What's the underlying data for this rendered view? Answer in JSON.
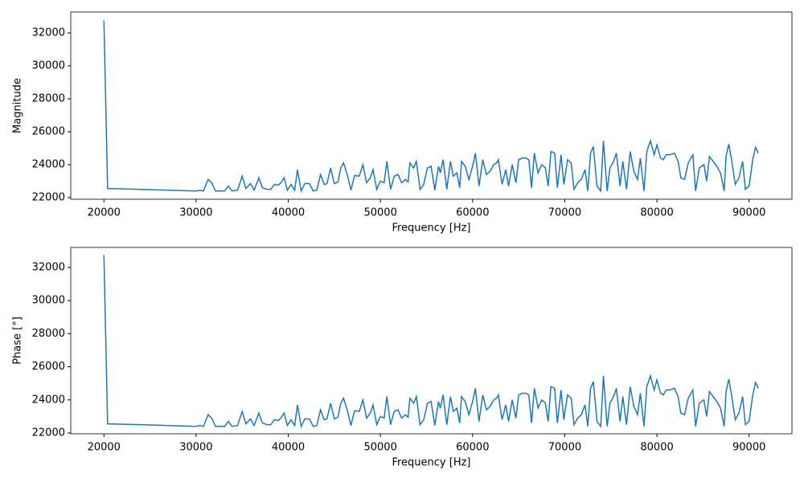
{
  "chart_data": [
    {
      "type": "line",
      "xlabel": "Frequency [Hz]",
      "ylabel": "Magnitude",
      "color": "#1f77b4",
      "xlim": [
        16400,
        94650
      ],
      "ylim": [
        21900,
        33270
      ],
      "xticks": [
        20000,
        30000,
        40000,
        50000,
        60000,
        70000,
        80000,
        90000
      ],
      "yticks": [
        22000,
        24000,
        26000,
        28000,
        30000,
        32000
      ],
      "x": [
        20000,
        20400,
        24000,
        30000,
        30400,
        30800,
        31300,
        31700,
        32100,
        32600,
        33100,
        33500,
        33900,
        34500,
        35000,
        35400,
        35900,
        36300,
        36800,
        37200,
        37700,
        38100,
        38500,
        38900,
        39200,
        39550,
        39900,
        40300,
        40700,
        41000,
        41400,
        41800,
        42300,
        42700,
        43100,
        43500,
        43900,
        44200,
        44600,
        45000,
        45400,
        45700,
        46000,
        46400,
        46800,
        47200,
        47700,
        48100,
        48500,
        48900,
        49200,
        49600,
        50000,
        50400,
        50700,
        51100,
        51500,
        51900,
        52300,
        52700,
        53000,
        53200,
        53600,
        53900,
        54300,
        54700,
        55100,
        55500,
        55900,
        56300,
        56500,
        56800,
        57200,
        57600,
        57900,
        58300,
        58600,
        58800,
        59200,
        59600,
        60000,
        60300,
        60700,
        61100,
        61500,
        61900,
        62300,
        62600,
        62800,
        63200,
        63600,
        63900,
        64300,
        64700,
        65000,
        65400,
        65800,
        66100,
        66400,
        66700,
        67100,
        67500,
        67900,
        68200,
        68500,
        68900,
        69200,
        69600,
        69900,
        70300,
        70700,
        71000,
        71400,
        71800,
        72200,
        72500,
        72800,
        73100,
        73500,
        73900,
        74200,
        74600,
        74900,
        75300,
        75600,
        76000,
        76300,
        76700,
        77100,
        77500,
        77900,
        78200,
        78600,
        78900,
        79300,
        79700,
        80000,
        80400,
        80700,
        81000,
        81400,
        81900,
        82300,
        82600,
        83000,
        83400,
        83900,
        84200,
        84600,
        85100,
        85400,
        85700,
        86100,
        86500,
        86900,
        87300,
        87500,
        87800,
        88100,
        88500,
        88900,
        89300,
        89600,
        90000,
        90400,
        90700,
        91000
      ],
      "values": [
        32750,
        22550,
        22500,
        22400,
        22450,
        22400,
        23100,
        22900,
        22400,
        22400,
        22400,
        22700,
        22400,
        22450,
        23300,
        22550,
        22850,
        22450,
        23200,
        22600,
        22500,
        22500,
        22800,
        22750,
        22900,
        23200,
        22450,
        22800,
        22450,
        23700,
        22400,
        22850,
        22850,
        22400,
        22450,
        23400,
        22800,
        22850,
        23800,
        22850,
        22950,
        23800,
        24100,
        23400,
        22450,
        23350,
        23300,
        24000,
        22900,
        23200,
        23700,
        22500,
        23000,
        22900,
        24200,
        22500,
        23300,
        23400,
        22900,
        23100,
        22950,
        24100,
        23800,
        24200,
        22500,
        22800,
        23800,
        23900,
        22450,
        23900,
        23500,
        24300,
        22500,
        24200,
        23300,
        23500,
        22600,
        24200,
        23900,
        23100,
        23900,
        24700,
        22700,
        24300,
        23400,
        23600,
        24000,
        24100,
        24300,
        22800,
        23700,
        22700,
        24000,
        22900,
        24300,
        24400,
        24400,
        24300,
        22600,
        24700,
        23500,
        24000,
        23800,
        22700,
        24800,
        24700,
        22600,
        24600,
        22800,
        24300,
        24100,
        22500,
        22900,
        23100,
        23700,
        22400,
        24700,
        25100,
        22700,
        22400,
        25450,
        22400,
        23800,
        24200,
        24700,
        22700,
        24200,
        22500,
        24800,
        23600,
        23100,
        24400,
        22400,
        24800,
        25450,
        24600,
        25200,
        24400,
        24300,
        24600,
        24600,
        24700,
        24200,
        23200,
        23100,
        24100,
        24600,
        22400,
        23800,
        24000,
        23000,
        24500,
        24200,
        23900,
        23500,
        22400,
        24500,
        25250,
        24300,
        22800,
        23200,
        24200,
        22500,
        22700,
        24300,
        25050,
        24700
      ]
    },
    {
      "type": "line",
      "xlabel": "Frequency [Hz]",
      "ylabel": "Phase [°]",
      "color": "#1f77b4",
      "xlim": [
        16400,
        94650
      ],
      "ylim": [
        21950,
        33210
      ],
      "xticks": [
        20000,
        30000,
        40000,
        50000,
        60000,
        70000,
        80000,
        90000
      ],
      "yticks": [
        22000,
        24000,
        26000,
        28000,
        30000,
        32000
      ],
      "x": [
        20000,
        20400,
        24000,
        30000,
        30400,
        30800,
        31300,
        31700,
        32100,
        32600,
        33100,
        33500,
        33900,
        34500,
        35000,
        35400,
        35900,
        36300,
        36800,
        37200,
        37700,
        38100,
        38500,
        38900,
        39200,
        39550,
        39900,
        40300,
        40700,
        41000,
        41400,
        41800,
        42300,
        42700,
        43100,
        43500,
        43900,
        44200,
        44600,
        45000,
        45400,
        45700,
        46000,
        46400,
        46800,
        47200,
        47700,
        48100,
        48500,
        48900,
        49200,
        49600,
        50000,
        50400,
        50700,
        51100,
        51500,
        51900,
        52300,
        52700,
        53000,
        53200,
        53600,
        53900,
        54300,
        54700,
        55100,
        55500,
        55900,
        56300,
        56500,
        56800,
        57200,
        57600,
        57900,
        58300,
        58600,
        58800,
        59200,
        59600,
        60000,
        60300,
        60700,
        61100,
        61500,
        61900,
        62300,
        62600,
        62800,
        63200,
        63600,
        63900,
        64300,
        64700,
        65000,
        65400,
        65800,
        66100,
        66400,
        66700,
        67100,
        67500,
        67900,
        68200,
        68500,
        68900,
        69200,
        69600,
        69900,
        70300,
        70700,
        71000,
        71400,
        71800,
        72200,
        72500,
        72800,
        73100,
        73500,
        73900,
        74200,
        74600,
        74900,
        75300,
        75600,
        76000,
        76300,
        76700,
        77100,
        77500,
        77900,
        78200,
        78600,
        78900,
        79300,
        79700,
        80000,
        80400,
        80700,
        81000,
        81400,
        81900,
        82300,
        82600,
        83000,
        83400,
        83900,
        84200,
        84600,
        85100,
        85400,
        85700,
        86100,
        86500,
        86900,
        87300,
        87500,
        87800,
        88100,
        88500,
        88900,
        89300,
        89600,
        90000,
        90400,
        90700,
        91000
      ],
      "values": [
        32750,
        22550,
        22500,
        22400,
        22450,
        22400,
        23100,
        22900,
        22400,
        22400,
        22400,
        22700,
        22400,
        22450,
        23300,
        22550,
        22850,
        22450,
        23200,
        22600,
        22500,
        22500,
        22800,
        22750,
        22900,
        23200,
        22450,
        22800,
        22450,
        23700,
        22400,
        22850,
        22850,
        22400,
        22450,
        23400,
        22800,
        22850,
        23800,
        22850,
        22950,
        23800,
        24100,
        23400,
        22450,
        23350,
        23300,
        24000,
        22900,
        23200,
        23700,
        22500,
        23000,
        22900,
        24200,
        22500,
        23300,
        23400,
        22900,
        23100,
        22950,
        24100,
        23800,
        24200,
        22500,
        22800,
        23800,
        23900,
        22450,
        23900,
        23500,
        24300,
        22500,
        24200,
        23300,
        23500,
        22600,
        24200,
        23900,
        23100,
        23900,
        24700,
        22700,
        24300,
        23400,
        23600,
        24000,
        24100,
        24300,
        22800,
        23700,
        22700,
        24000,
        22900,
        24300,
        24400,
        24400,
        24300,
        22600,
        24700,
        23500,
        24000,
        23800,
        22700,
        24800,
        24700,
        22600,
        24600,
        22800,
        24300,
        24100,
        22500,
        22900,
        23100,
        23700,
        22400,
        24700,
        25100,
        22700,
        22400,
        25450,
        22400,
        23800,
        24200,
        24700,
        22700,
        24200,
        22500,
        24800,
        23600,
        23100,
        24400,
        22400,
        24800,
        25450,
        24600,
        25200,
        24400,
        24300,
        24600,
        24600,
        24700,
        24200,
        23200,
        23100,
        24100,
        24600,
        22400,
        23800,
        24000,
        23000,
        24500,
        24200,
        23900,
        23500,
        22400,
        24500,
        25250,
        24300,
        22800,
        23200,
        24200,
        22500,
        22700,
        24300,
        25050,
        24700
      ]
    }
  ]
}
